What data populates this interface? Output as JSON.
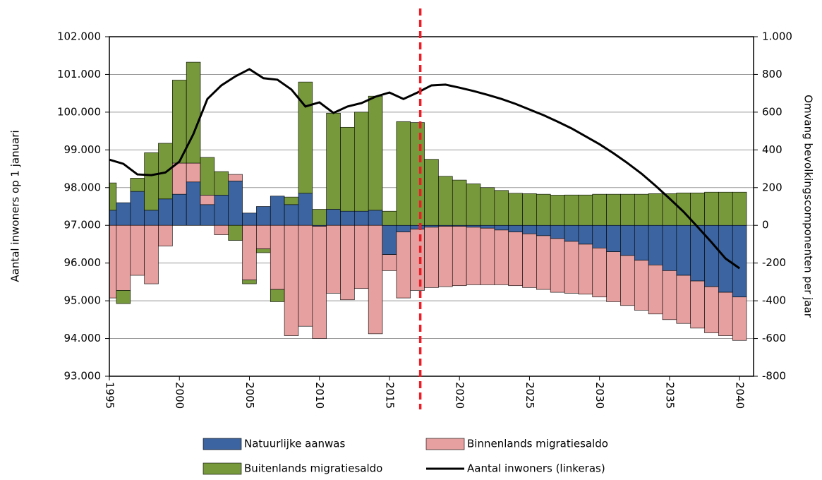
{
  "chart_data": {
    "type": "bar",
    "x": [
      1995,
      1996,
      1997,
      1998,
      1999,
      2000,
      2001,
      2002,
      2003,
      2004,
      2005,
      2006,
      2007,
      2008,
      2009,
      2010,
      2011,
      2012,
      2013,
      2014,
      2015,
      2016,
      2017,
      2018,
      2019,
      2020,
      2021,
      2022,
      2023,
      2024,
      2025,
      2026,
      2027,
      2028,
      2029,
      2030,
      2031,
      2032,
      2033,
      2034,
      2035,
      2036,
      2037,
      2038,
      2039,
      2040
    ],
    "series": [
      {
        "name": "Natuurlijke aanwas",
        "type": "bar",
        "axis": "y2",
        "color": "#3b64a0",
        "values": [
          80,
          120,
          180,
          80,
          140,
          165,
          230,
          110,
          160,
          235,
          65,
          100,
          155,
          110,
          170,
          -5,
          85,
          75,
          75,
          80,
          -155,
          -35,
          -20,
          -10,
          -5,
          -5,
          -10,
          -15,
          -25,
          -35,
          -45,
          -55,
          -70,
          -85,
          -100,
          -120,
          -140,
          -160,
          -185,
          -210,
          -240,
          -265,
          -295,
          -325,
          -355,
          -380
        ]
      },
      {
        "name": "Binnenlands migratiesaldo",
        "type": "bar",
        "axis": "y2",
        "color": "#e6a0a0",
        "values": [
          -385,
          -345,
          -265,
          -310,
          -110,
          165,
          100,
          50,
          -50,
          35,
          -290,
          -125,
          -340,
          -585,
          -535,
          -595,
          -360,
          -395,
          -335,
          -575,
          -85,
          -350,
          -325,
          -320,
          -320,
          -315,
          -305,
          -300,
          -290,
          -285,
          -285,
          -285,
          -285,
          -275,
          -265,
          -260,
          -265,
          -265,
          -265,
          -260,
          -260,
          -255,
          -250,
          -245,
          -230,
          -230
        ]
      },
      {
        "name": "Buitenlands migratiesaldo",
        "type": "bar",
        "axis": "y2",
        "color": "#77993c",
        "values": [
          145,
          -70,
          70,
          305,
          295,
          440,
          535,
          200,
          125,
          -80,
          -20,
          -20,
          -65,
          40,
          590,
          85,
          510,
          445,
          525,
          605,
          75,
          550,
          545,
          350,
          260,
          240,
          220,
          200,
          185,
          170,
          168,
          165,
          160,
          161,
          161,
          165,
          165,
          165,
          165,
          168,
          168,
          172,
          172,
          176,
          176,
          176
        ]
      },
      {
        "name": "Aantal inwoners (linkeras)",
        "type": "line",
        "axis": "y",
        "color": "#000000",
        "values": [
          98740,
          98630,
          98350,
          98330,
          98400,
          98690,
          99420,
          100350,
          100710,
          100950,
          101140,
          100900,
          100860,
          100600,
          100150,
          100260,
          99980,
          100150,
          100240,
          100410,
          100520,
          100350,
          100520,
          100710,
          100730,
          100650,
          100560,
          100460,
          100350,
          100220,
          100070,
          99920,
          99750,
          99570,
          99360,
          99150,
          98910,
          98650,
          98370,
          98050,
          97710,
          97360,
          96960,
          96550,
          96120,
          95860
        ]
      }
    ],
    "xlim": [
      1995,
      2041
    ],
    "xticks": [
      1995,
      2000,
      2005,
      2010,
      2015,
      2020,
      2025,
      2030,
      2035,
      2040
    ],
    "ylim": [
      93000,
      102000
    ],
    "yticks": [
      {
        "value": 93000,
        "label": "93.000"
      },
      {
        "value": 94000,
        "label": "94.000"
      },
      {
        "value": 95000,
        "label": "95.000"
      },
      {
        "value": 96000,
        "label": "96.000"
      },
      {
        "value": 97000,
        "label": "97.000"
      },
      {
        "value": 98000,
        "label": "98.000"
      },
      {
        "value": 99000,
        "label": "99.000"
      },
      {
        "value": 100000,
        "label": "100.000"
      },
      {
        "value": 101000,
        "label": "101.000"
      },
      {
        "value": 102000,
        "label": "102.000"
      }
    ],
    "y2lim": [
      -800,
      1000
    ],
    "y2ticks": [
      -800,
      -600,
      -400,
      -200,
      0,
      200,
      400,
      600,
      800,
      {
        "value": 1000,
        "label": "1.000"
      }
    ],
    "ylabel": "Aantal inwoners op 1 januari",
    "y2label": "Omvang bevolkingscomponenten per jaar",
    "vline_x": 2017.2,
    "vline_color": "#ee1c25",
    "grid": true
  }
}
